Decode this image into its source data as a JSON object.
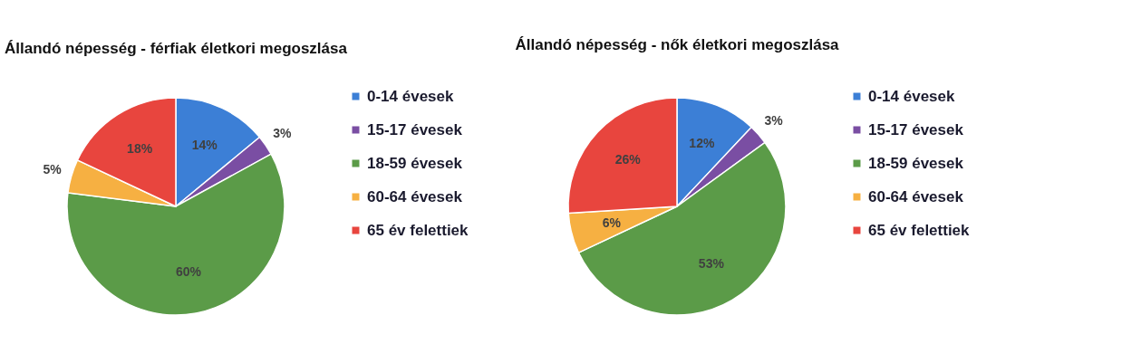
{
  "chart_data": [
    {
      "type": "pie",
      "title": "Állandó népesség - férfiak életkori megoszlása",
      "categories": [
        "0-14 évesek",
        "15-17 évesek",
        "18-59 évesek",
        "60-64 évesek",
        "65 év felettiek"
      ],
      "values": [
        14,
        3,
        60,
        5,
        18
      ],
      "colors": [
        "#3c7fd6",
        "#7a4ea3",
        "#5b9b48",
        "#f6b042",
        "#e8453e"
      ],
      "value_labels": [
        "14%",
        "3%",
        "60%",
        "5%",
        "18%"
      ],
      "legend": "right"
    },
    {
      "type": "pie",
      "title": "Állandó népesség - nők életkori megoszlása",
      "categories": [
        "0-14 évesek",
        "15-17 évesek",
        "18-59 évesek",
        "60-64 évesek",
        "65 év felettiek"
      ],
      "values": [
        12,
        3,
        53,
        6,
        26
      ],
      "colors": [
        "#3c7fd6",
        "#7a4ea3",
        "#5b9b48",
        "#f6b042",
        "#e8453e"
      ],
      "value_labels": [
        "12%",
        "3%",
        "53%",
        "6%",
        "26%"
      ],
      "legend": "right"
    }
  ]
}
